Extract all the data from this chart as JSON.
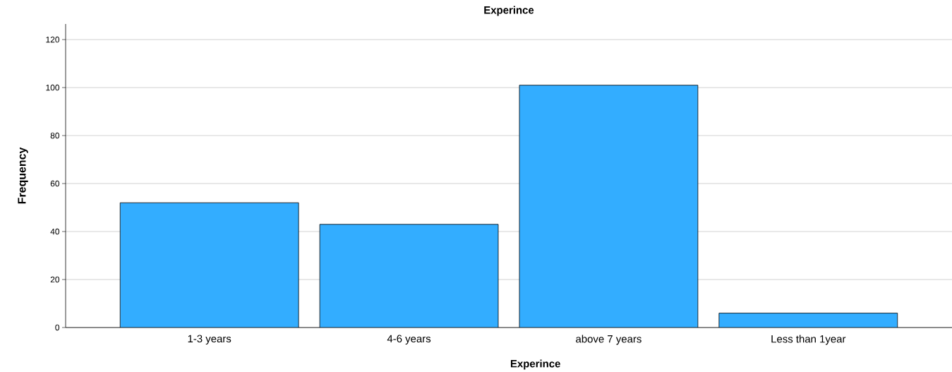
{
  "chart_data": {
    "type": "bar",
    "title": "Experince",
    "xlabel": "Experince",
    "ylabel": "Frequency",
    "categories": [
      "1-3 years",
      "4-6 years",
      "above 7 years",
      "Less than 1year"
    ],
    "values": [
      52,
      43,
      101,
      6
    ],
    "color": "#33adff",
    "ylim": [
      0,
      126.5
    ],
    "yticks": [
      0,
      20,
      40,
      60,
      80,
      100,
      120
    ],
    "grid": "y"
  }
}
